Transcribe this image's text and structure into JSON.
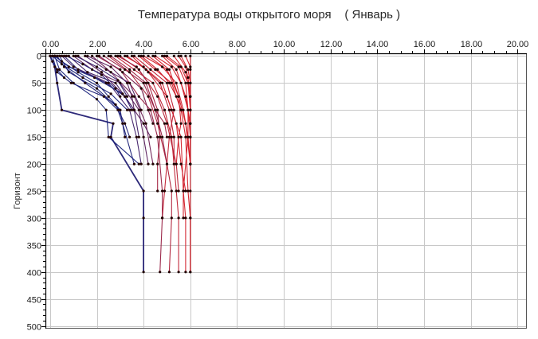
{
  "chart_data": {
    "type": "line",
    "title": "Температура воды открытого моря    ( Январь )",
    "xlabel": "",
    "ylabel": "Горизонт",
    "xlim": [
      -0.2,
      20.4
    ],
    "ylim": [
      505,
      -5
    ],
    "x_ticks": [
      "0.00",
      "2.00",
      "4.00",
      "6.00",
      "8.00",
      "10.00",
      "12.00",
      "14.00",
      "16.00",
      "18.00",
      "20.00"
    ],
    "x_tick_values": [
      0,
      2,
      4,
      6,
      8,
      10,
      12,
      14,
      16,
      18,
      20
    ],
    "y_ticks": [
      "0",
      "50",
      "100",
      "150",
      "200",
      "250",
      "300",
      "350",
      "400",
      "450",
      "500"
    ],
    "y_tick_values": [
      0,
      50,
      100,
      150,
      200,
      250,
      300,
      350,
      400,
      450,
      500
    ],
    "grid": true,
    "x_axis_position": "top",
    "series_style": "Many temperature profiles (depth vs temperature), colored from dark blue (coldest) to red (warmer), with dot markers at observed horizons",
    "colors": {
      "cold": "#141e78",
      "warm": "#d21e28",
      "marker": "#200000",
      "grid": "#c8c8c8",
      "axis": "#000000"
    },
    "series": [
      {
        "x": [
          0.0,
          0.2,
          0.3,
          0.5,
          2.7,
          2.6,
          4.0,
          4.0,
          4.0
        ],
        "y": [
          0,
          20,
          50,
          100,
          125,
          150,
          250,
          300,
          400
        ]
      },
      {
        "x": [
          0.2,
          0.4,
          1.0,
          2.0,
          2.4,
          2.5,
          3.8
        ],
        "y": [
          0,
          25,
          50,
          80,
          100,
          150,
          200
        ]
      },
      {
        "x": [
          0.1,
          0.3,
          0.9,
          2.3,
          2.9,
          3.1,
          3.6
        ],
        "y": [
          0,
          30,
          50,
          75,
          100,
          125,
          200
        ]
      },
      {
        "x": [
          0.3,
          0.6,
          1.5,
          2.8,
          3.2,
          3.4
        ],
        "y": [
          0,
          20,
          50,
          90,
          125,
          150
        ]
      },
      {
        "x": [
          0.4,
          0.8,
          2.0,
          3.0,
          3.2
        ],
        "y": [
          0,
          30,
          60,
          100,
          150
        ]
      },
      {
        "x": [
          0.5,
          1.0,
          2.5,
          3.4,
          3.7,
          3.9
        ],
        "y": [
          0,
          20,
          50,
          100,
          150,
          200
        ]
      },
      {
        "x": [
          0.6,
          1.2,
          2.4,
          3.2,
          3.5
        ],
        "y": [
          0,
          25,
          50,
          75,
          100
        ]
      },
      {
        "x": [
          0.2,
          0.8,
          1.9,
          3.1
        ],
        "y": [
          0,
          20,
          40,
          70
        ]
      },
      {
        "x": [
          0.8,
          1.6,
          2.8,
          3.6,
          3.8
        ],
        "y": [
          0,
          30,
          50,
          100,
          150
        ]
      },
      {
        "x": [
          0.1,
          0.5,
          1.4,
          2.6,
          3.3
        ],
        "y": [
          0,
          15,
          40,
          70,
          100
        ]
      },
      {
        "x": [
          1.0,
          1.8,
          3.0,
          3.8,
          4.0,
          4.2
        ],
        "y": [
          0,
          25,
          50,
          100,
          150,
          200
        ]
      },
      {
        "x": [
          1.2,
          2.2,
          3.2,
          4.0,
          4.3
        ],
        "y": [
          0,
          30,
          75,
          125,
          150
        ]
      },
      {
        "x": [
          1.5,
          2.4,
          3.4,
          3.9
        ],
        "y": [
          0,
          25,
          50,
          100
        ]
      },
      {
        "x": [
          1.8,
          2.6,
          3.6,
          4.1,
          4.4
        ],
        "y": [
          0,
          30,
          75,
          125,
          200
        ]
      },
      {
        "x": [
          2.0,
          3.0,
          3.8,
          4.3,
          4.6,
          4.8,
          4.8,
          4.7
        ],
        "y": [
          0,
          25,
          75,
          100,
          150,
          250,
          300,
          400
        ]
      },
      {
        "x": [
          2.3,
          3.2,
          4.0,
          4.5,
          4.8,
          5.0
        ],
        "y": [
          0,
          25,
          50,
          100,
          150,
          200
        ]
      },
      {
        "x": [
          2.5,
          3.4,
          4.2,
          4.6,
          5.0,
          5.2,
          5.2,
          5.1
        ],
        "y": [
          0,
          30,
          75,
          125,
          200,
          250,
          300,
          400
        ]
      },
      {
        "x": [
          2.8,
          3.6,
          4.4,
          4.9,
          5.2,
          5.4,
          5.5,
          5.5
        ],
        "y": [
          0,
          25,
          50,
          100,
          150,
          250,
          300,
          400
        ]
      },
      {
        "x": [
          3.0,
          3.8,
          4.6,
          5.0,
          5.4,
          5.5
        ],
        "y": [
          0,
          25,
          75,
          125,
          200,
          250
        ]
      },
      {
        "x": [
          3.2,
          4.0,
          4.8,
          5.2,
          5.6,
          5.7,
          5.8,
          5.8
        ],
        "y": [
          0,
          20,
          50,
          100,
          150,
          250,
          300,
          400
        ]
      },
      {
        "x": [
          3.5,
          4.2,
          5.0,
          5.4,
          5.6,
          5.8
        ],
        "y": [
          0,
          30,
          75,
          125,
          200,
          250
        ]
      },
      {
        "x": [
          3.8,
          4.5,
          5.2,
          5.6,
          5.8,
          5.9,
          6.0,
          6.0
        ],
        "y": [
          0,
          25,
          50,
          100,
          150,
          250,
          300,
          400
        ]
      },
      {
        "x": [
          4.0,
          4.8,
          5.4,
          5.7,
          5.9,
          6.0
        ],
        "y": [
          0,
          20,
          50,
          100,
          150,
          200
        ]
      },
      {
        "x": [
          4.2,
          5.0,
          5.5,
          5.8,
          6.0,
          6.0,
          6.0,
          6.0
        ],
        "y": [
          0,
          25,
          75,
          125,
          200,
          250,
          300,
          400
        ]
      },
      {
        "x": [
          4.5,
          5.2,
          5.6,
          5.9,
          6.0
        ],
        "y": [
          0,
          20,
          50,
          100,
          150
        ]
      },
      {
        "x": [
          4.8,
          5.4,
          5.8,
          6.0,
          6.0
        ],
        "y": [
          0,
          25,
          75,
          125,
          200
        ]
      },
      {
        "x": [
          5.0,
          5.6,
          5.9,
          6.0
        ],
        "y": [
          0,
          20,
          50,
          100
        ]
      },
      {
        "x": [
          5.3,
          5.8,
          6.0,
          6.0,
          6.0
        ],
        "y": [
          0,
          30,
          75,
          150,
          200
        ]
      },
      {
        "x": [
          5.6,
          5.9,
          6.0,
          6.0
        ],
        "y": [
          0,
          25,
          50,
          100
        ]
      },
      {
        "x": [
          5.8,
          6.0,
          6.0,
          6.0
        ],
        "y": [
          0,
          20,
          50,
          75
        ]
      },
      {
        "x": [
          6.0,
          6.0,
          6.0,
          6.0,
          6.0,
          6.0,
          6.0
        ],
        "y": [
          0,
          25,
          50,
          75,
          100,
          150,
          200
        ]
      },
      {
        "x": [
          3.6,
          4.3,
          5.0,
          5.3,
          5.1,
          4.9,
          4.8
        ],
        "y": [
          0,
          25,
          50,
          100,
          150,
          250,
          300
        ]
      },
      {
        "x": [
          2.9,
          3.7,
          4.2,
          4.6,
          4.7,
          4.6,
          4.6
        ],
        "y": [
          0,
          20,
          50,
          100,
          150,
          200,
          250
        ]
      },
      {
        "x": [
          4.4,
          5.1,
          5.5,
          5.6,
          5.5,
          5.4
        ],
        "y": [
          0,
          25,
          75,
          125,
          150,
          200
        ]
      },
      {
        "x": [
          1.6,
          2.6,
          3.3,
          3.5,
          3.6
        ],
        "y": [
          0,
          20,
          50,
          75,
          100
        ]
      },
      {
        "x": [
          0.7,
          1.4,
          2.2,
          2.8,
          3.0
        ],
        "y": [
          0,
          15,
          35,
          60,
          75
        ]
      },
      {
        "x": [
          1.1,
          2.0,
          2.9,
          3.3
        ],
        "y": [
          0,
          20,
          45,
          75
        ]
      },
      {
        "x": [
          2.1,
          3.1,
          3.9,
          4.2,
          4.4
        ],
        "y": [
          0,
          30,
          60,
          100,
          125
        ]
      },
      {
        "x": [
          3.3,
          4.1,
          4.7,
          5.1,
          5.3,
          5.3
        ],
        "y": [
          0,
          25,
          50,
          100,
          150,
          200
        ]
      },
      {
        "x": [
          4.9,
          5.5,
          5.8,
          5.9,
          5.9,
          5.7,
          5.7
        ],
        "y": [
          0,
          20,
          50,
          100,
          150,
          250,
          300
        ]
      },
      {
        "x": [
          5.5,
          5.8,
          5.9,
          6.0,
          6.0
        ],
        "y": [
          0,
          20,
          40,
          75,
          125
        ]
      },
      {
        "x": [
          0.0,
          0.1,
          0.3,
          0.6
        ],
        "y": [
          0,
          10,
          25,
          40
        ]
      },
      {
        "x": [
          0.2,
          0.5,
          1.2,
          2.0,
          2.5,
          3.0
        ],
        "y": [
          0,
          10,
          30,
          50,
          75,
          100
        ]
      },
      {
        "x": [
          2.6,
          3.4,
          4.1,
          4.5,
          4.9,
          5.0
        ],
        "y": [
          0,
          25,
          50,
          100,
          125,
          150
        ]
      },
      {
        "x": [
          3.9,
          4.6,
          5.1,
          5.4,
          5.6
        ],
        "y": [
          0,
          25,
          50,
          75,
          100
        ]
      }
    ]
  }
}
